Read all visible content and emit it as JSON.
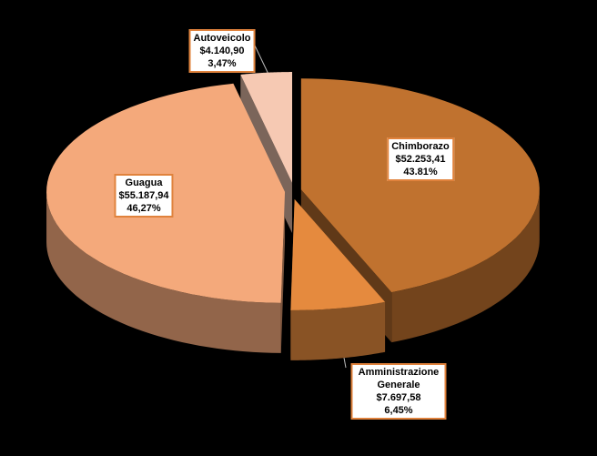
{
  "chart_data": {
    "type": "pie3d",
    "categories": [
      "Chimborazo",
      "Amministrazione Generale",
      "Guagua",
      "Autoveicolo"
    ],
    "values": [
      52253.41,
      7697.58,
      55187.94,
      4140.9
    ],
    "value_labels": [
      "$52.253,41",
      "$7.697,58",
      "$55.187,94",
      "$4.140,90"
    ],
    "percents": [
      43.81,
      6.45,
      46.27,
      3.47
    ],
    "percent_labels": [
      "43.81%",
      "6,45%",
      "46,27%",
      "3,47%"
    ],
    "colors": [
      "#c0722f",
      "#e58a3e",
      "#f4a97b",
      "#f6c9b3"
    ]
  }
}
